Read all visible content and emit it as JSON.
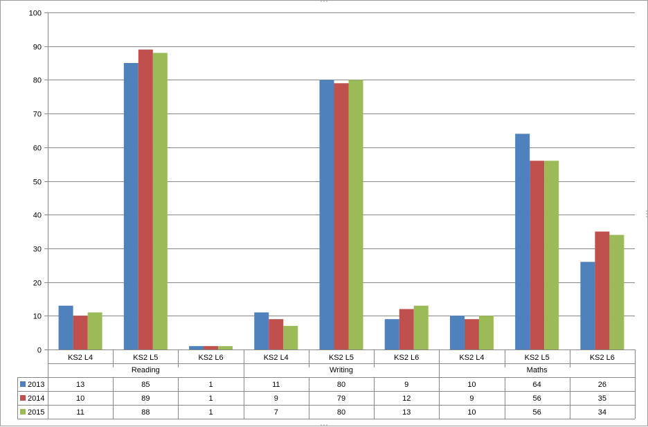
{
  "chart_data": {
    "type": "bar",
    "groups": [
      {
        "name": "Reading",
        "categories": [
          "KS2 L4",
          "KS2 L5",
          "KS2 L6"
        ]
      },
      {
        "name": "Writing",
        "categories": [
          "KS2 L4",
          "KS2 L5",
          "KS2 L6"
        ]
      },
      {
        "name": "Maths",
        "categories": [
          "KS2 L4",
          "KS2 L5",
          "KS2 L6"
        ]
      }
    ],
    "series": [
      {
        "name": "2013",
        "color": "#4f81bd",
        "values": [
          13,
          85,
          1,
          11,
          80,
          9,
          10,
          64,
          26
        ]
      },
      {
        "name": "2014",
        "color": "#c0504d",
        "values": [
          10,
          89,
          1,
          9,
          79,
          12,
          9,
          56,
          35
        ]
      },
      {
        "name": "2015",
        "color": "#9bbb59",
        "values": [
          11,
          88,
          1,
          7,
          80,
          13,
          10,
          56,
          34
        ]
      }
    ],
    "ylim": [
      0,
      100
    ],
    "yticks": [
      0,
      10,
      20,
      30,
      40,
      50,
      60,
      70,
      80,
      90,
      100
    ],
    "grid": true,
    "legend": "data-table",
    "title": "",
    "xlabel": "",
    "ylabel": ""
  }
}
